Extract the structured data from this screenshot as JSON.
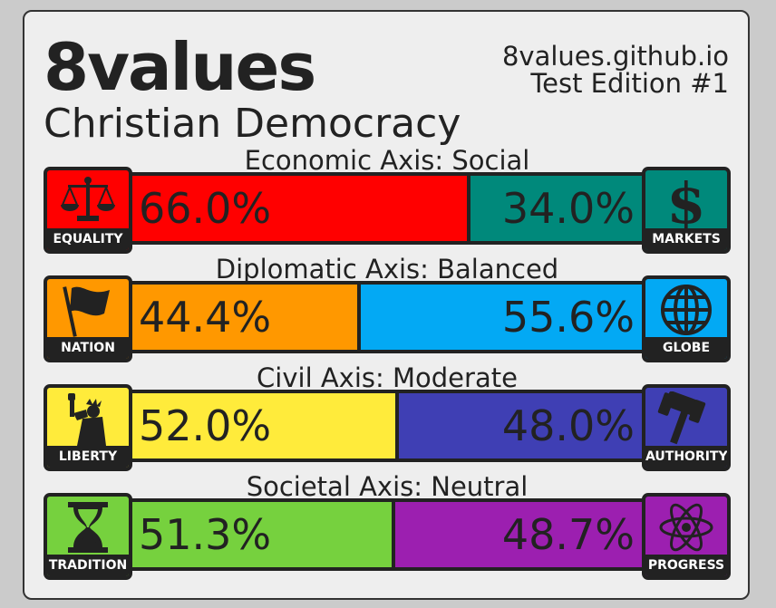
{
  "header": {
    "title": "8values",
    "subtitle": "Christian Democracy",
    "site": "8values.github.io",
    "edition": "Test Edition #1"
  },
  "axes": [
    {
      "label": "Economic Axis: Social",
      "left": {
        "name": "EQUALITY",
        "pct_label": "66.0%",
        "value": 66.0,
        "color": "#ff0000",
        "icon": "scales-icon"
      },
      "right": {
        "name": "MARKETS",
        "pct_label": "34.0%",
        "value": 34.0,
        "color": "#00897b",
        "icon": "dollar-icon"
      }
    },
    {
      "label": "Diplomatic Axis: Balanced",
      "left": {
        "name": "NATION",
        "pct_label": "44.4%",
        "value": 44.4,
        "color": "#ff9800",
        "icon": "flag-icon"
      },
      "right": {
        "name": "GLOBE",
        "pct_label": "55.6%",
        "value": 55.6,
        "color": "#03a9f4",
        "icon": "globe-icon"
      }
    },
    {
      "label": "Civil Axis: Moderate",
      "left": {
        "name": "LIBERTY",
        "pct_label": "52.0%",
        "value": 52.0,
        "color": "#ffeb3b",
        "icon": "statue-of-liberty-icon"
      },
      "right": {
        "name": "AUTHORITY",
        "pct_label": "48.0%",
        "value": 48.0,
        "color": "#3f3fb4",
        "icon": "gavel-icon"
      }
    },
    {
      "label": "Societal Axis: Neutral",
      "left": {
        "name": "TRADITION",
        "pct_label": "51.3%",
        "value": 51.3,
        "color": "#76d13e",
        "icon": "hourglass-icon"
      },
      "right": {
        "name": "PROGRESS",
        "pct_label": "48.7%",
        "value": 48.7,
        "color": "#9c1fb0",
        "icon": "atom-icon"
      }
    }
  ]
}
